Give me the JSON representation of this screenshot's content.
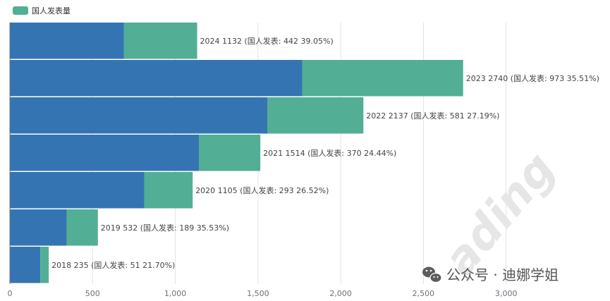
{
  "chart_data": {
    "type": "bar",
    "orientation": "horizontal",
    "stacked": true,
    "categories": [
      "2024",
      "2023",
      "2022",
      "2021",
      "2020",
      "2019",
      "2018"
    ],
    "series": [
      {
        "name": "",
        "color": "#3574b3",
        "values": [
          690,
          1767,
          1556,
          1144,
          812,
          343,
          184
        ]
      },
      {
        "name": "国人发表量",
        "color": "#52ae95",
        "values": [
          442,
          973,
          581,
          370,
          293,
          189,
          51
        ]
      }
    ],
    "totals": [
      1132,
      2740,
      2137,
      1514,
      1105,
      532,
      235
    ],
    "data_labels": [
      "2024 1132 (国人发表: 442 39.05%)",
      "2023 2740 (国人发表: 973 35.51%)",
      "2022 2137 (国人发表: 581 27.19%)",
      "2021 1514 (国人发表: 370 24.44%)",
      "2020 1105 (国人发表: 293 26.52%)",
      "2019 532 (国人发表: 189 35.53%)",
      "2018 235 (国人发表: 51 21.70%)"
    ],
    "xlim": [
      0,
      3500
    ],
    "xticks": [
      0,
      500,
      1000,
      1500,
      2000,
      2500,
      3000
    ],
    "xtick_labels": [
      "0",
      "500",
      "1,000",
      "1,500",
      "2,000",
      "2,500",
      "3,000"
    ],
    "legend": {
      "label": "国人发表量",
      "position": "top-left"
    },
    "grid": true
  },
  "watermark": {
    "text": "公众号 · 迪娜学姐",
    "icon": "wechat-icon",
    "background_text": "ading"
  }
}
